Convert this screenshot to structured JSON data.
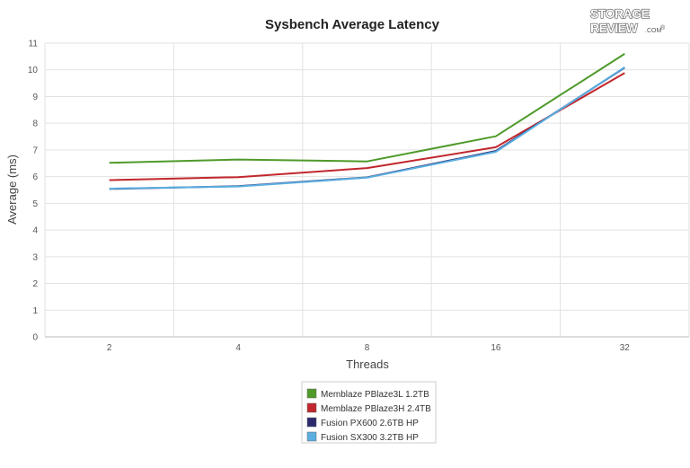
{
  "logo": {
    "line1": "STORAGE",
    "line2": "REVIEW",
    "suffix": ".COM",
    "mark": "®"
  },
  "colors": {
    "grid": "#e2e2e2",
    "axis": "#bbbbbb"
  },
  "chart_data": {
    "type": "line",
    "title": "Sysbench Average Latency",
    "xlabel": "Threads",
    "ylabel": "Average (ms)",
    "categories": [
      "2",
      "4",
      "8",
      "16",
      "32"
    ],
    "ylim": [
      0,
      11
    ],
    "yticks": [
      0,
      1,
      2,
      3,
      4,
      5,
      6,
      7,
      8,
      9,
      10,
      11
    ],
    "grid": true,
    "legend_position": "bottom-center",
    "series": [
      {
        "name": "Memblaze PBlaze3L 1.2TB",
        "color": "#4f9a2a",
        "values": [
          6.52,
          6.64,
          6.57,
          7.51,
          10.6
        ]
      },
      {
        "name": "Memblaze PBlaze3H 2.4TB",
        "color": "#c1272d",
        "values": [
          5.87,
          5.98,
          6.32,
          7.1,
          9.88
        ]
      },
      {
        "name": "Fusion PX600 2.6TB HP",
        "color": "#2b2a6e",
        "values": [
          5.54,
          5.64,
          5.97,
          6.96,
          10.08
        ]
      },
      {
        "name": "Fusion SX300 3.2TB HP",
        "color": "#5aaee0",
        "values": [
          5.55,
          5.63,
          5.96,
          6.93,
          10.1
        ]
      }
    ]
  }
}
